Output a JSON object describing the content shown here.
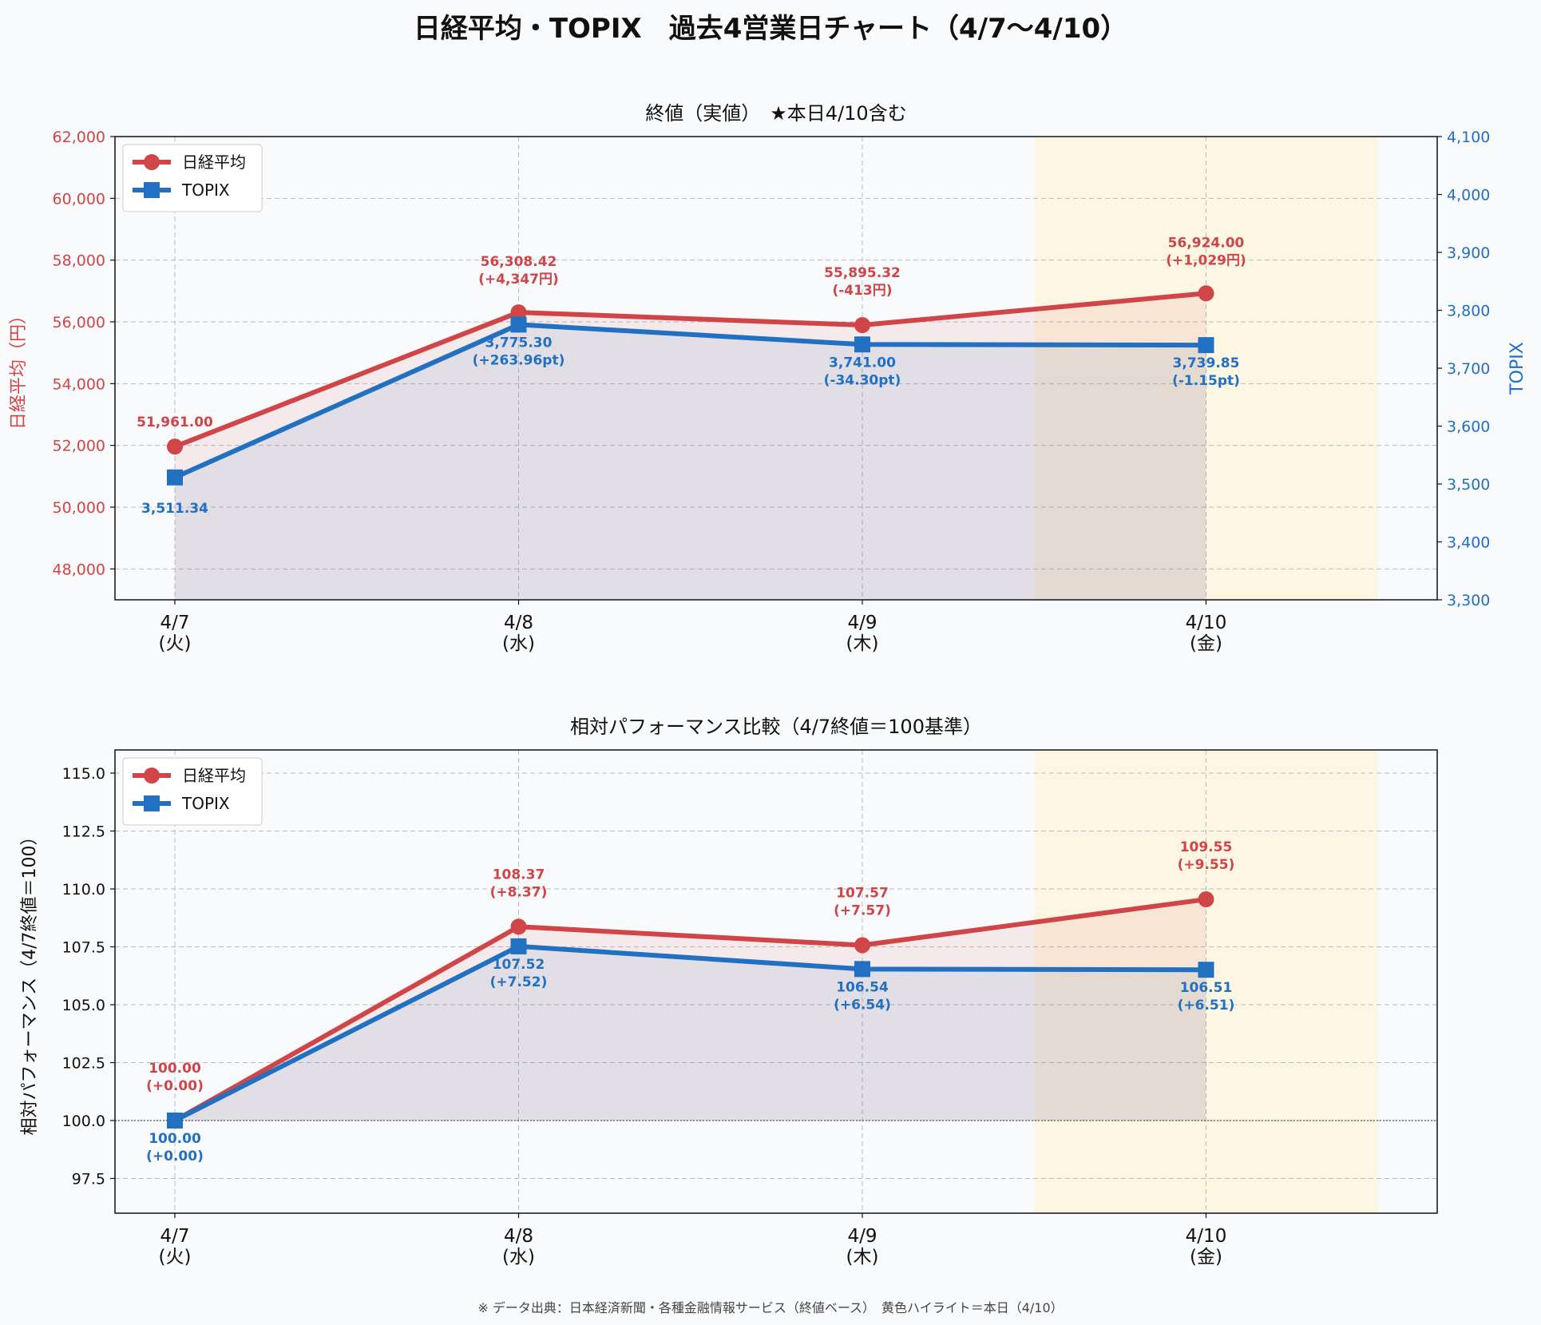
{
  "title": "日経平均・TOPIX　過去4営業日チャート（4/7〜4/10）",
  "footnote": "※ データ出典：日本経済新聞・各種金融情報サービス（終値ベース）　黄色ハイライト＝本日（4/10）",
  "colors": {
    "nikkei": "#d04548",
    "topix": "#2270c2",
    "highlight": "#fdf3d9",
    "background": "#f8fafc"
  },
  "chart_data": [
    {
      "type": "line",
      "title": "終値（実値）　★本日4/10含む",
      "categories": [
        "4/7\n(火)",
        "4/8\n(水)",
        "4/9\n(木)",
        "4/10\n(金)"
      ],
      "highlight_category": "4/10\n(金)",
      "ylabel": "日経平均（円）",
      "ylabel_right": "TOPIX",
      "ylim": [
        47000,
        62000
      ],
      "yticks": [
        48000,
        50000,
        52000,
        54000,
        56000,
        58000,
        60000,
        62000
      ],
      "ytick_labels": [
        "48,000",
        "50,000",
        "52,000",
        "54,000",
        "56,000",
        "58,000",
        "60,000",
        "62,000"
      ],
      "ylim_right": [
        3300,
        4100
      ],
      "yticks_right": [
        3300,
        3400,
        3500,
        3600,
        3700,
        3800,
        3900,
        4000,
        4100
      ],
      "ytick_labels_right": [
        "3,300",
        "3,400",
        "3,500",
        "3,600",
        "3,700",
        "3,800",
        "3,900",
        "4,000",
        "4,100"
      ],
      "grid": true,
      "legend": "top-left",
      "series": [
        {
          "name": "日経平均",
          "axis": "left",
          "marker": "circle",
          "values": [
            51961.0,
            56308.42,
            55895.32,
            56924.0
          ],
          "labels": [
            "51,961.00",
            "56,308.42\n(+4,347円)",
            "55,895.32\n(-413円)",
            "56,924.00\n(+1,029円)"
          ]
        },
        {
          "name": "TOPIX",
          "axis": "right",
          "marker": "square",
          "values": [
            3511.34,
            3775.3,
            3741.0,
            3739.85
          ],
          "labels": [
            "3,511.34",
            "3,775.30\n(+263.96pt)",
            "3,741.00\n(-34.30pt)",
            "3,739.85\n(-1.15pt)"
          ]
        }
      ]
    },
    {
      "type": "line",
      "title": "相対パフォーマンス比較（4/7終値＝100基準）",
      "categories": [
        "4/7\n(火)",
        "4/8\n(水)",
        "4/9\n(木)",
        "4/10\n(金)"
      ],
      "highlight_category": "4/10\n(金)",
      "ylabel": "相対パフォーマンス（4/7終値＝100）",
      "ylim": [
        96,
        116
      ],
      "yticks": [
        97.5,
        100,
        102.5,
        105,
        107.5,
        110,
        112.5,
        115
      ],
      "ytick_labels": [
        "97.5",
        "100.0",
        "102.5",
        "105.0",
        "107.5",
        "110.0",
        "112.5",
        "115.0"
      ],
      "baseline": 100,
      "grid": true,
      "legend": "top-left",
      "series": [
        {
          "name": "日経平均",
          "axis": "left",
          "marker": "circle",
          "values": [
            100.0,
            108.37,
            107.57,
            109.55
          ],
          "labels": [
            "100.00\n(+0.00)",
            "108.37\n(+8.37)",
            "107.57\n(+7.57)",
            "109.55\n(+9.55)"
          ]
        },
        {
          "name": "TOPIX",
          "axis": "left",
          "marker": "square",
          "values": [
            100.0,
            107.52,
            106.54,
            106.51
          ],
          "labels": [
            "100.00\n(+0.00)",
            "107.52\n(+7.52)",
            "106.54\n(+6.54)",
            "106.51\n(+6.51)"
          ]
        }
      ]
    }
  ]
}
